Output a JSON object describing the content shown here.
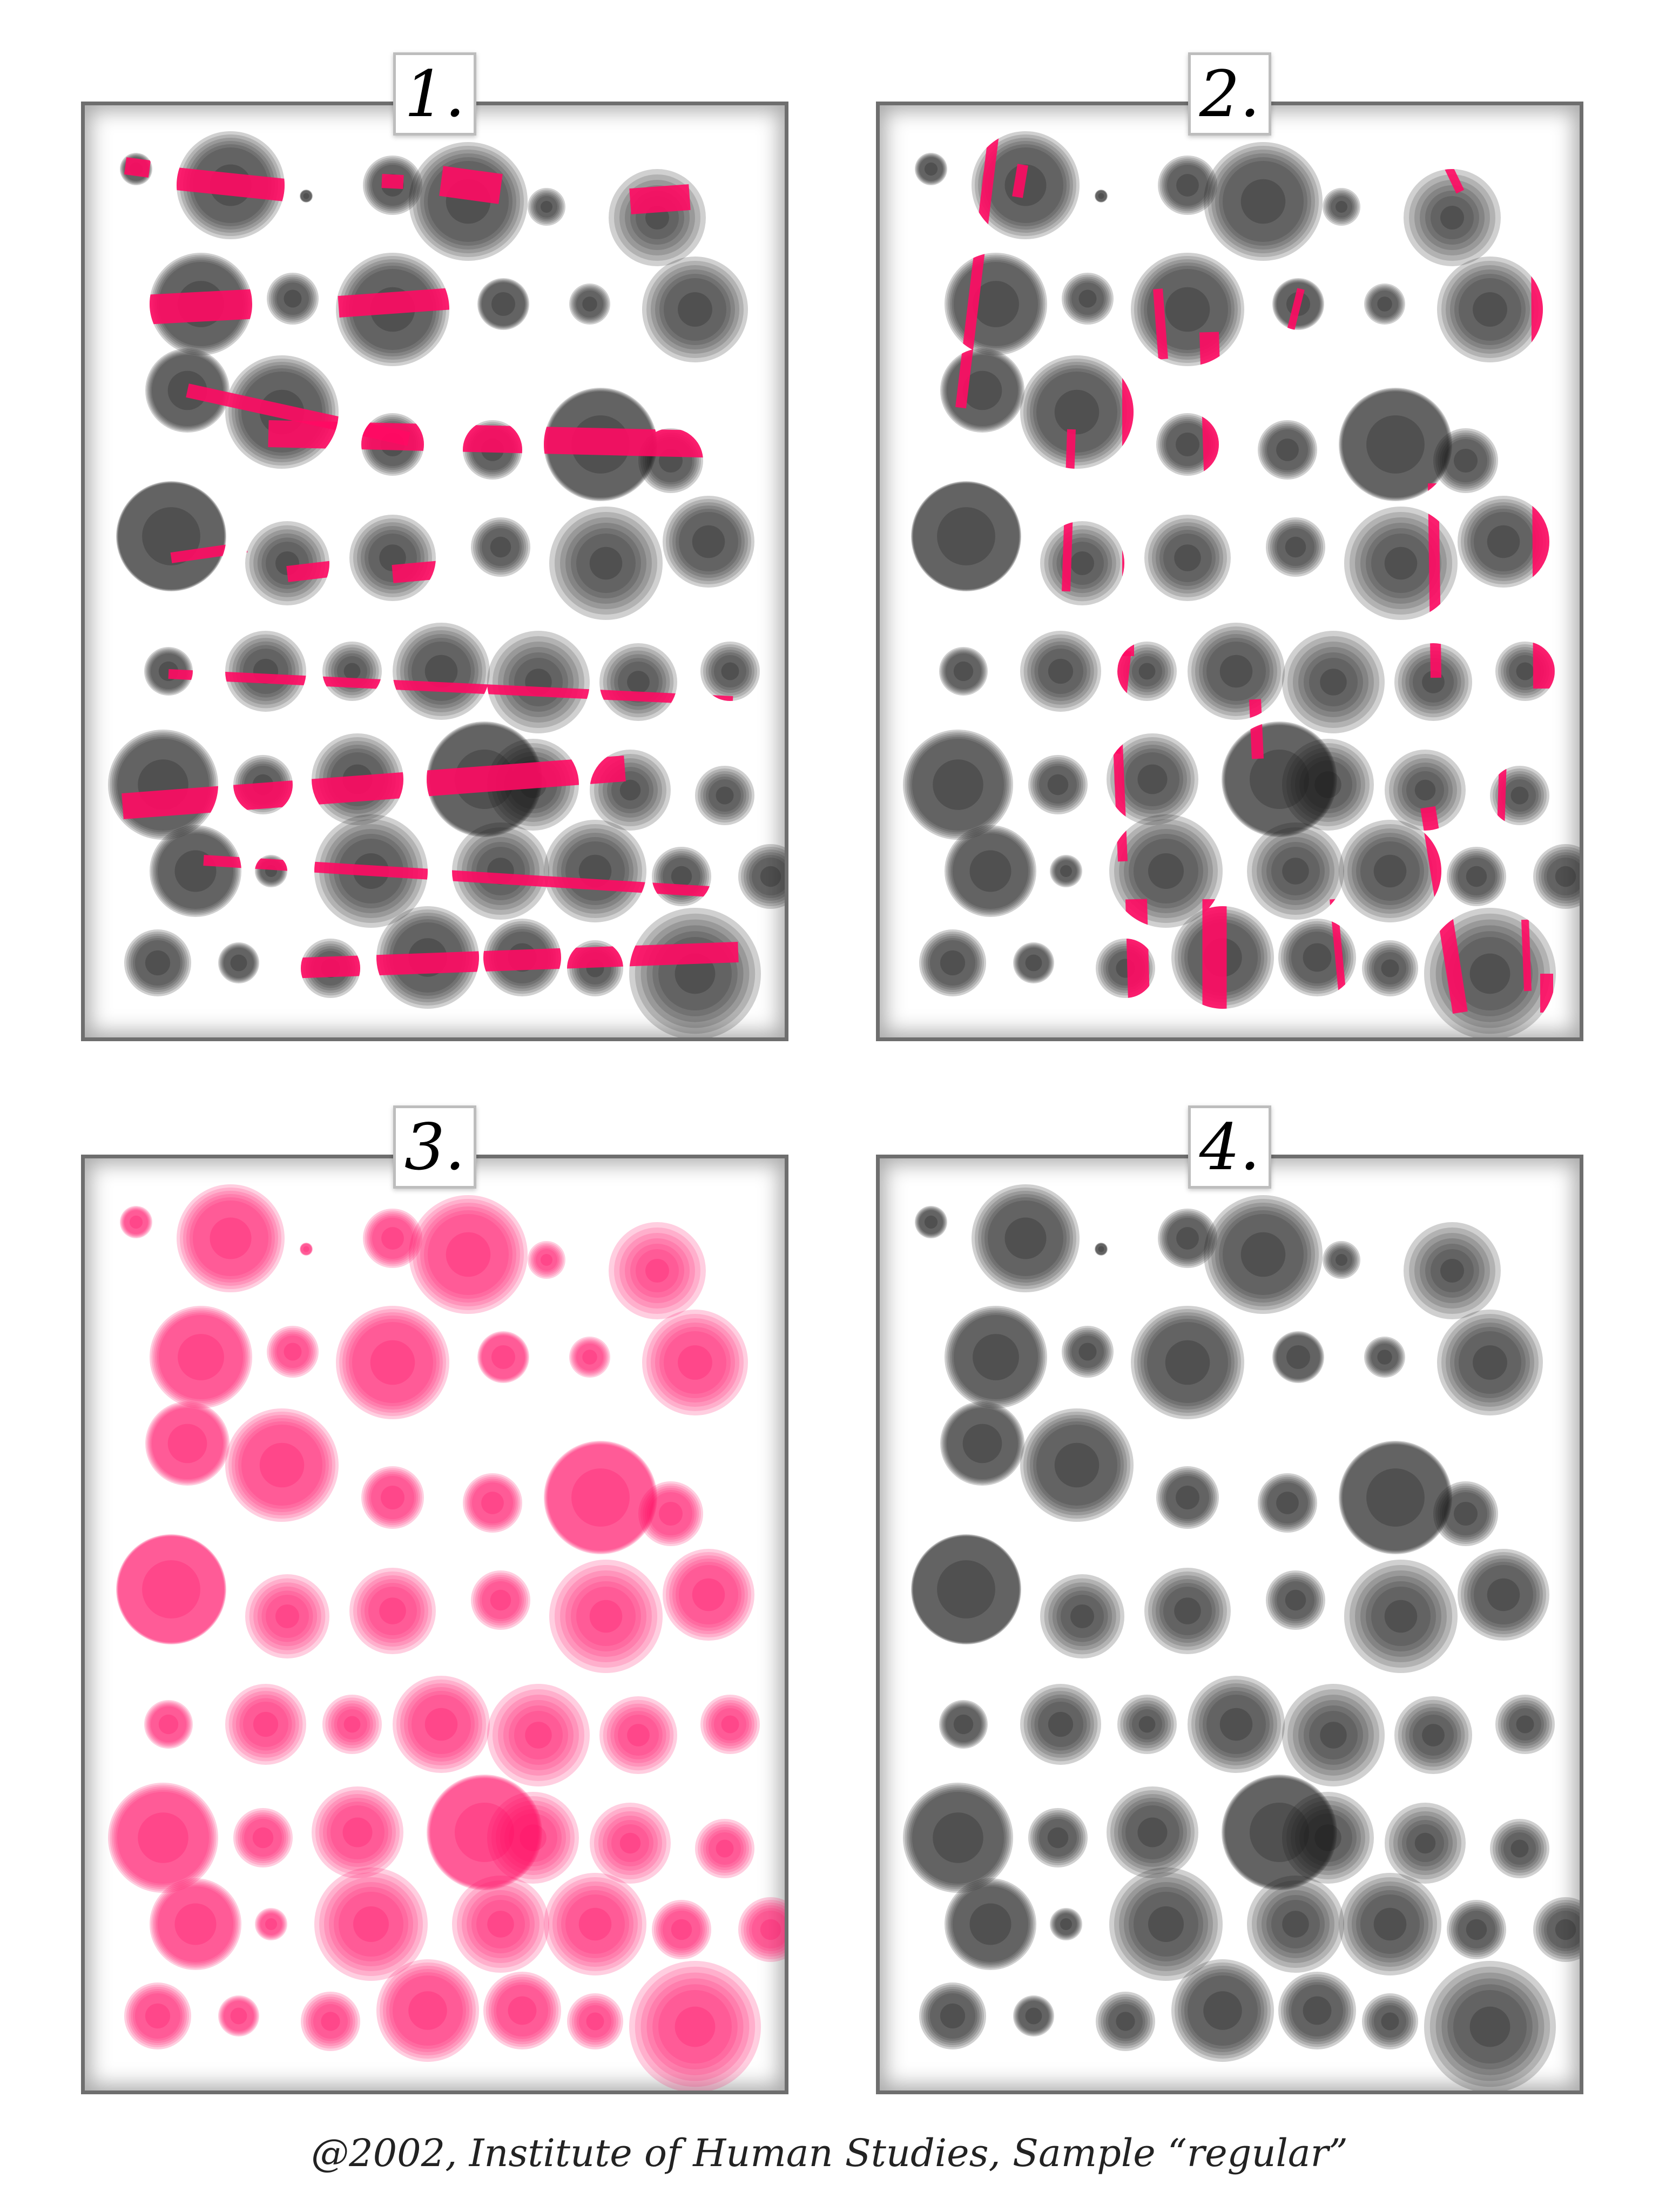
{
  "panels": [
    {
      "label": "1.",
      "mode": "bands-horizontal"
    },
    {
      "label": "2.",
      "mode": "bands-vertical"
    },
    {
      "label": "3.",
      "mode": "pink-only"
    },
    {
      "label": "4.",
      "mode": "gray-only"
    }
  ],
  "caption": "@2002, Institute of Human Studies, Sample “regular”",
  "colors": {
    "pink": "#ff0a63",
    "gray": "#161616",
    "frame": "#6e6e6e"
  }
}
